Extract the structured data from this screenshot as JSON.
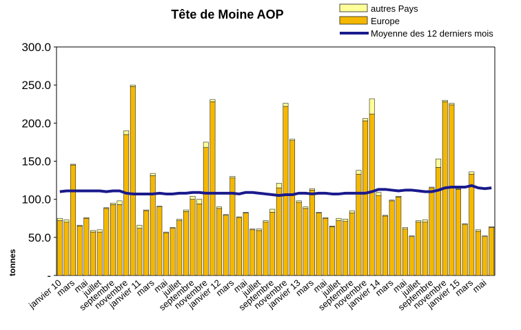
{
  "chart_data": {
    "type": "bar",
    "stacked": true,
    "title": "Tête de Moine AOP",
    "y_label": "tonnes",
    "categories": [
      "janvier 10",
      null,
      "mars",
      null,
      "mai",
      null,
      "juillet",
      null,
      "septembre",
      null,
      "novembre",
      null,
      "janvier 11",
      null,
      "mars",
      null,
      "mai",
      null,
      "juillet",
      null,
      "septembre",
      null,
      "novembre",
      null,
      "janvier 12",
      null,
      "mars",
      null,
      "mai",
      null,
      "juillet",
      null,
      "septembre",
      null,
      "novembre",
      null,
      "janvier 13",
      null,
      "mars",
      null,
      "mai",
      null,
      "juillet",
      null,
      "septembre",
      null,
      "novembre",
      null,
      "janvier 14",
      null,
      "mars",
      null,
      "mai",
      null,
      "juillet",
      null,
      "septembre",
      null,
      "novembre",
      null,
      "janvier 15",
      null,
      "mars",
      null,
      "mai",
      null
    ],
    "series": [
      {
        "name": "Europe",
        "color": "#f5b800",
        "values": [
          72,
          70,
          145,
          65,
          75,
          57,
          57,
          88,
          93,
          93,
          185,
          248,
          62,
          85,
          131,
          90,
          56,
          62,
          72,
          84,
          100,
          94,
          168,
          228,
          88,
          79,
          128,
          76,
          82,
          60,
          59,
          70,
          83,
          115,
          222,
          177,
          96,
          88,
          112,
          82,
          75,
          64,
          72,
          71,
          82,
          133,
          203,
          212,
          105,
          78,
          98,
          103,
          61,
          51,
          70,
          70,
          115,
          142,
          228,
          224,
          113,
          67,
          133,
          58,
          51,
          63
        ]
      },
      {
        "name": "autres Pays",
        "color": "#ffff99",
        "values": [
          3,
          3,
          1,
          1,
          1,
          2,
          3,
          1,
          2,
          5,
          5,
          2,
          4,
          1,
          3,
          1,
          1,
          1,
          2,
          2,
          4,
          6,
          7,
          3,
          2,
          1,
          2,
          1,
          1,
          1,
          2,
          2,
          4,
          6,
          4,
          2,
          2,
          2,
          2,
          1,
          1,
          1,
          3,
          3,
          3,
          5,
          3,
          20,
          4,
          1,
          1,
          1,
          2,
          1,
          2,
          3,
          1,
          11,
          2,
          2,
          1,
          1,
          3,
          2,
          1,
          1
        ]
      },
      {
        "name": "Moyenne des 12 derniers mois",
        "color": "#1a1a8c",
        "type": "line",
        "values": [
          110,
          111,
          111,
          111,
          111,
          111,
          111,
          110,
          111,
          111,
          108,
          107,
          107,
          107,
          107,
          108,
          107,
          107,
          108,
          108,
          109,
          109,
          108,
          108,
          108,
          108,
          108,
          107,
          109,
          109,
          108,
          107,
          106,
          105,
          106,
          106,
          108,
          108,
          107,
          108,
          108,
          107,
          107,
          108,
          108,
          108,
          108,
          110,
          113,
          113,
          112,
          111,
          112,
          112,
          111,
          110,
          110,
          112,
          115,
          116,
          116,
          116,
          118,
          115,
          114,
          115
        ]
      }
    ],
    "ylim": [
      0,
      300
    ],
    "yticks": [
      {
        "value": 0,
        "label": "-"
      },
      {
        "value": 50,
        "label": "50.0"
      },
      {
        "value": 100,
        "label": "100.0"
      },
      {
        "value": 150,
        "label": "150.0"
      },
      {
        "value": 200,
        "label": "200.0"
      },
      {
        "value": 250,
        "label": "250.0"
      },
      {
        "value": 300,
        "label": "300.0"
      }
    ],
    "grid": false,
    "legend": "top-right"
  }
}
